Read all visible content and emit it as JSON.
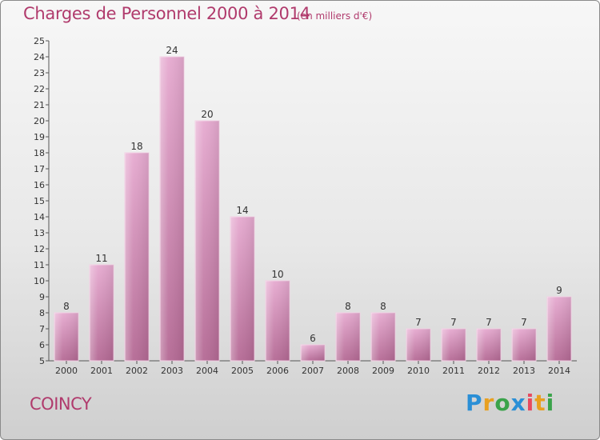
{
  "header": {
    "title": "Charges de Personnel 2000 à 2014",
    "subtitle": "(en milliers d'€)"
  },
  "footer": {
    "commune": "COINCY",
    "logo_text": "Proxiti"
  },
  "colors": {
    "title": "#b03a6c",
    "bar_top": "#e4a6cc",
    "bar_bottom": "#b86c96",
    "bar_edge": "#f7d2e8"
  },
  "chart_data": {
    "type": "bar",
    "title": "Charges de Personnel 2000 à 2014",
    "subtitle": "(en milliers d'€)",
    "categories": [
      "2000",
      "2001",
      "2002",
      "2003",
      "2004",
      "2005",
      "2006",
      "2007",
      "2008",
      "2009",
      "2010",
      "2011",
      "2012",
      "2013",
      "2014"
    ],
    "values": [
      8,
      11,
      18,
      24,
      20,
      14,
      10,
      6,
      8,
      8,
      7,
      7,
      7,
      7,
      9
    ],
    "ylim": [
      5,
      25
    ],
    "yticks": [
      5,
      6,
      7,
      8,
      9,
      10,
      11,
      12,
      13,
      14,
      15,
      16,
      17,
      18,
      19,
      20,
      21,
      22,
      23,
      24,
      25
    ],
    "grid": false,
    "xlabel": "",
    "ylabel": ""
  }
}
